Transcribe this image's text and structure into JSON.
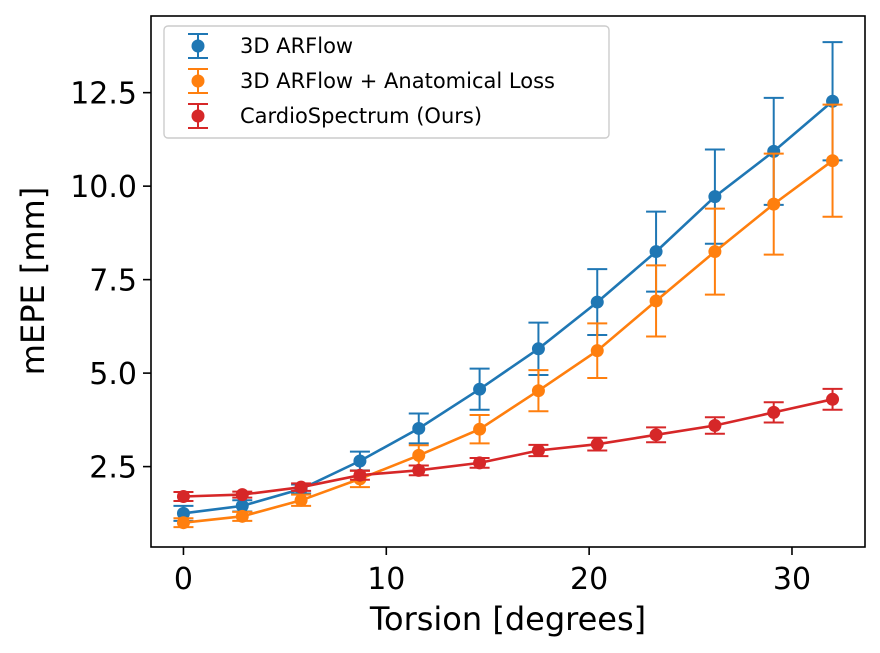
{
  "chart_data": {
    "type": "line",
    "xlabel": "Torsion [degrees]",
    "ylabel": "mEPE [mm]",
    "xlim": [
      -1.6,
      33.6
    ],
    "ylim": [
      0.35,
      14.55
    ],
    "xticks": [
      0,
      10,
      20,
      30
    ],
    "xtick_labels": [
      "0",
      "10",
      "20",
      "30"
    ],
    "yticks": [
      2.5,
      5.0,
      7.5,
      10.0,
      12.5
    ],
    "ytick_labels": [
      "2.5",
      "5.0",
      "7.5",
      "10.0",
      "12.5"
    ],
    "grid": false,
    "legend_position": "top-left",
    "x": [
      0,
      2.9,
      5.8,
      8.7,
      11.6,
      14.6,
      17.5,
      20.4,
      23.3,
      26.2,
      29.1,
      32.0
    ],
    "series": [
      {
        "name": "3D ARFlow",
        "color": "#1f77b4",
        "values": [
          1.25,
          1.45,
          1.9,
          2.65,
          3.52,
          4.57,
          5.65,
          6.9,
          8.25,
          9.72,
          10.93,
          12.27
        ],
        "errors": [
          0.2,
          0.15,
          0.12,
          0.25,
          0.4,
          0.55,
          0.7,
          0.88,
          1.07,
          1.26,
          1.43,
          1.58
        ]
      },
      {
        "name": "3D ARFlow + Anatomical Loss",
        "color": "#ff7f0e",
        "values": [
          1.0,
          1.17,
          1.6,
          2.17,
          2.8,
          3.5,
          4.53,
          5.6,
          6.93,
          8.25,
          9.52,
          10.68
        ],
        "errors": [
          0.12,
          0.12,
          0.15,
          0.22,
          0.27,
          0.38,
          0.55,
          0.73,
          0.95,
          1.15,
          1.35,
          1.5
        ]
      },
      {
        "name": "CardioSpectrum (Ours)",
        "color": "#d62728",
        "values": [
          1.7,
          1.75,
          1.95,
          2.27,
          2.4,
          2.6,
          2.93,
          3.1,
          3.35,
          3.6,
          3.95,
          4.3
        ],
        "errors": [
          0.12,
          0.08,
          0.1,
          0.12,
          0.13,
          0.13,
          0.15,
          0.17,
          0.2,
          0.22,
          0.27,
          0.28
        ]
      }
    ]
  }
}
